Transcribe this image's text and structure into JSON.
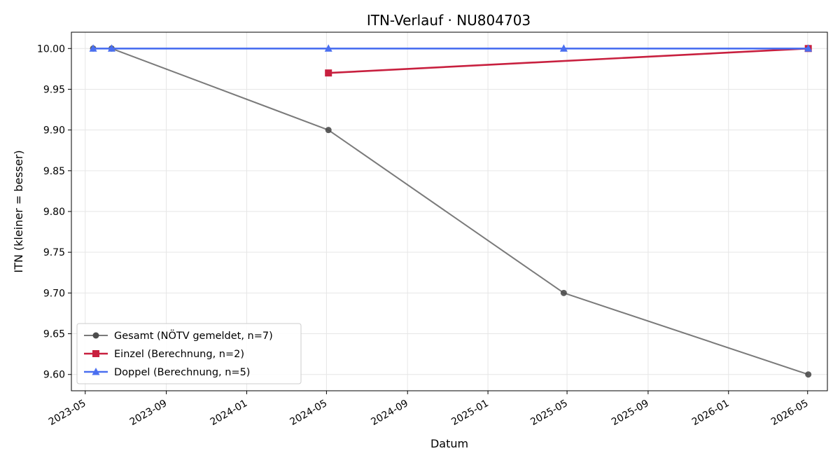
{
  "chart_data": {
    "type": "line",
    "title": "ITN-Verlauf · NU804703",
    "xlabel": "Datum",
    "ylabel": "ITN  (kleiner = besser)",
    "x_type": "date",
    "xlim": [
      "2023-04-10",
      "2026-05-31"
    ],
    "ylim": [
      9.58,
      10.02
    ],
    "x_ticks": [
      "2023-05-01",
      "2023-09-01",
      "2024-01-01",
      "2024-05-01",
      "2024-09-01",
      "2025-01-01",
      "2025-05-01",
      "2025-09-01",
      "2026-01-01",
      "2026-05-01"
    ],
    "x_tick_labels": [
      "2023-05",
      "2023-09",
      "2024-01",
      "2024-05",
      "2024-09",
      "2025-01",
      "2025-05",
      "2025-09",
      "2026-01",
      "2026-05"
    ],
    "y_ticks": [
      9.6,
      9.65,
      9.7,
      9.75,
      9.8,
      9.85,
      9.9,
      9.95,
      10.0
    ],
    "y_tick_labels": [
      "9.60",
      "9.65",
      "9.70",
      "9.75",
      "9.80",
      "9.85",
      "9.90",
      "9.95",
      "10.00"
    ],
    "grid": true,
    "legend_position": "lower-left",
    "series": [
      {
        "name": "Gesamt (NÖTV gemeldet, n=7)",
        "color": "#4d4d4d",
        "marker": "circle",
        "points": [
          {
            "x": "2023-05-13",
            "y": 10.0
          },
          {
            "x": "2023-06-10",
            "y": 10.0
          },
          {
            "x": "2024-05-04",
            "y": 9.9
          },
          {
            "x": "2025-04-26",
            "y": 9.7
          },
          {
            "x": "2026-05-02",
            "y": 9.6
          }
        ]
      },
      {
        "name": "Einzel (Berechnung, n=2)",
        "color": "#c8203f",
        "marker": "square",
        "points": [
          {
            "x": "2024-05-04",
            "y": 9.97
          },
          {
            "x": "2026-05-02",
            "y": 10.0
          }
        ]
      },
      {
        "name": "Doppel (Berechnung, n=5)",
        "color": "#4a6ff0",
        "marker": "triangle",
        "points": [
          {
            "x": "2023-05-13",
            "y": 10.0
          },
          {
            "x": "2023-06-10",
            "y": 10.0
          },
          {
            "x": "2024-05-04",
            "y": 10.0
          },
          {
            "x": "2025-04-26",
            "y": 10.0
          },
          {
            "x": "2026-05-02",
            "y": 10.0
          }
        ]
      }
    ]
  }
}
